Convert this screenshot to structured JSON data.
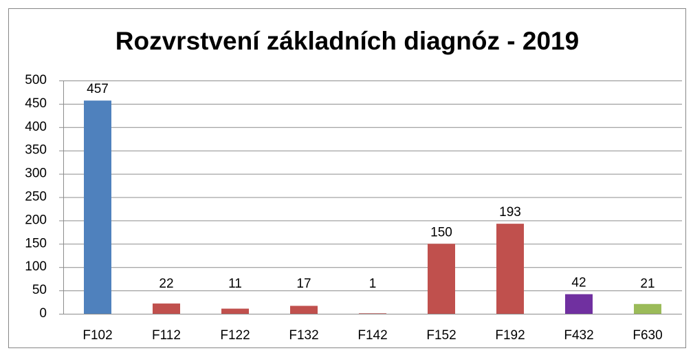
{
  "chart_data": {
    "type": "bar",
    "title": "Rozvrstvení základních diagnóz - 2019",
    "categories": [
      "F102",
      "F112",
      "F122",
      "F132",
      "F142",
      "F152",
      "F192",
      "F432",
      "F630"
    ],
    "values": [
      457,
      22,
      11,
      17,
      1,
      150,
      193,
      42,
      21
    ],
    "colors": [
      "#4f81bd",
      "#c0504d",
      "#c0504d",
      "#c0504d",
      "#c0504d",
      "#c0504d",
      "#c0504d",
      "#7030a0",
      "#9bbb59"
    ],
    "ylim": [
      0,
      500
    ],
    "yticks": [
      0,
      50,
      100,
      150,
      200,
      250,
      300,
      350,
      400,
      450,
      500
    ],
    "grid": true,
    "data_labels": true
  }
}
